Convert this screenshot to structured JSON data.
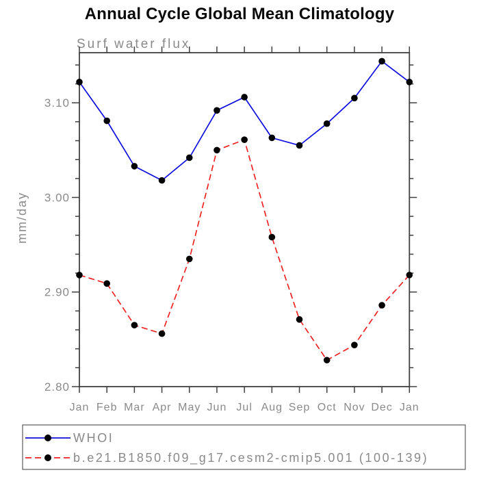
{
  "title": "Annual Cycle Global Mean Climatology",
  "colors": {
    "series_blue": "#0d0de0",
    "series_red": "#f02222",
    "marker_black": "#000000",
    "axis": "#3f3f3f",
    "gray_text": "#8a8a8a",
    "legend_border": "#5a5a5a",
    "background": "#ffffff"
  },
  "chart_data": {
    "type": "line",
    "title": "Annual Cycle Global Mean Climatology",
    "subtitle": "Surf water flux",
    "xlabel": "",
    "ylabel": "mm/day",
    "categories": [
      "Jan",
      "Feb",
      "Mar",
      "Apr",
      "May",
      "Jun",
      "Jul",
      "Aug",
      "Sep",
      "Oct",
      "Nov",
      "Dec",
      "Jan"
    ],
    "ylim": [
      2.8,
      3.153
    ],
    "ytick_major": [
      2.8,
      2.9,
      3.0,
      3.1
    ],
    "ytick_major_labels": [
      "2.80",
      "2.90",
      "3.00",
      "3.10"
    ],
    "ytick_minor_step": 0.02,
    "grid": false,
    "legend_position": "bottom-left-box",
    "series": [
      {
        "name": "WHOI",
        "color": "#0d0de0",
        "style": "solid",
        "marker": "filled-circle",
        "marker_color": "#000000",
        "values": [
          3.122,
          3.081,
          3.033,
          3.018,
          3.042,
          3.092,
          3.106,
          3.063,
          3.055,
          3.078,
          3.105,
          3.144,
          3.122
        ]
      },
      {
        "name": "b.e21.B1850.f09_g17.cesm2-cmip5.001 (100-139)",
        "color": "#f02222",
        "style": "dashed",
        "marker": "filled-circle",
        "marker_color": "#000000",
        "values": [
          2.918,
          2.909,
          2.865,
          2.856,
          2.935,
          3.05,
          3.061,
          2.958,
          2.871,
          2.828,
          2.844,
          2.886,
          2.918
        ]
      }
    ]
  }
}
